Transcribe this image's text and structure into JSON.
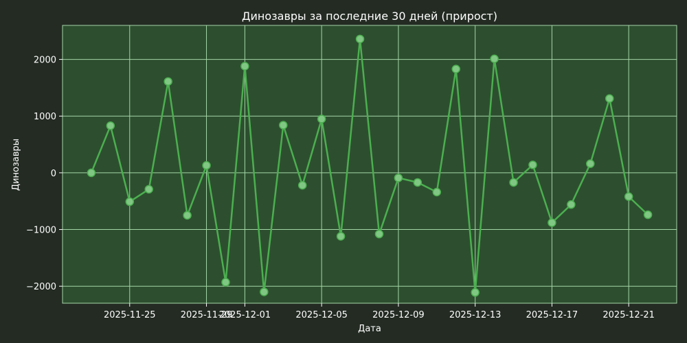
{
  "chart_data": {
    "type": "line",
    "title": "Динозавры за последние 30 дней (прирост)",
    "xlabel": "Дата",
    "ylabel": "Динозавры",
    "ylim": [
      -2300,
      2600
    ],
    "xlim": [
      "2025-11-21T12:00",
      "2025-12-23T12:00"
    ],
    "grid": true,
    "x_tick_labels": [
      "2025-11-25",
      "2025-11-29",
      "2025-12-01",
      "2025-12-05",
      "2025-12-09",
      "2025-12-13",
      "2025-12-17",
      "2025-12-21"
    ],
    "y_tick_labels": [
      "−2000",
      "−1000",
      "0",
      "1000",
      "2000"
    ],
    "y_tick_values": [
      -2000,
      -1000,
      0,
      1000,
      2000
    ],
    "series": [
      {
        "x": [
          "2025-11-23",
          "2025-11-24",
          "2025-11-25",
          "2025-11-26",
          "2025-11-27",
          "2025-11-28",
          "2025-11-29",
          "2025-11-30",
          "2025-12-01",
          "2025-12-02",
          "2025-12-03",
          "2025-12-04",
          "2025-12-05",
          "2025-12-06",
          "2025-12-07",
          "2025-12-08",
          "2025-12-09",
          "2025-12-10",
          "2025-12-11",
          "2025-12-12",
          "2025-12-13",
          "2025-12-14",
          "2025-12-15",
          "2025-12-16",
          "2025-12-17",
          "2025-12-18",
          "2025-12-19",
          "2025-12-20",
          "2025-12-21",
          "2025-12-22"
        ],
        "values": [
          0,
          830,
          -510,
          -290,
          1610,
          -750,
          130,
          -1930,
          1880,
          -2100,
          840,
          -220,
          950,
          -1120,
          2360,
          -1080,
          -90,
          -170,
          -340,
          1830,
          -2110,
          2010,
          -170,
          140,
          -880,
          -560,
          160,
          1310,
          -420,
          -740
        ],
        "color": "#4caf50"
      }
    ]
  }
}
